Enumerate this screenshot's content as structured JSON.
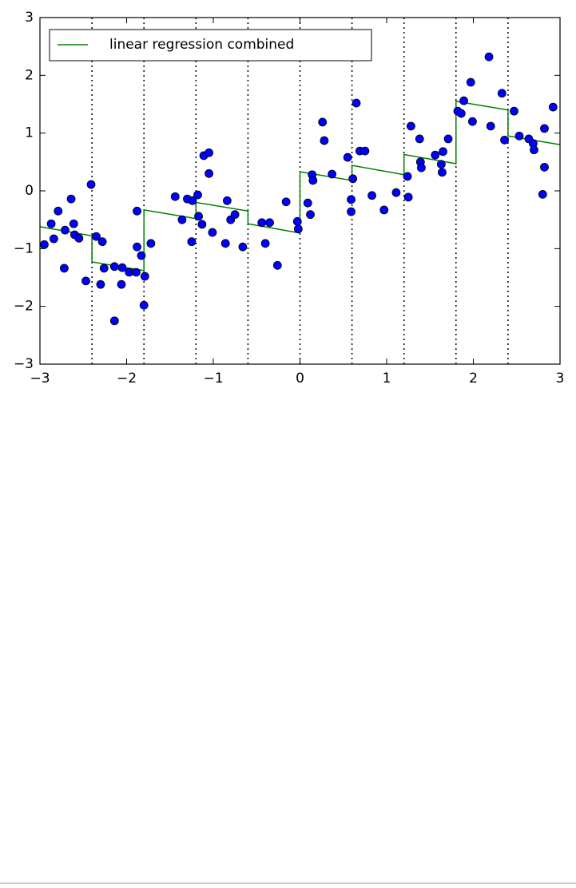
{
  "chart_data": {
    "type": "scatter",
    "xlim": [
      -3,
      3
    ],
    "ylim": [
      -3,
      3
    ],
    "xticks": [
      {
        "value": -3,
        "label": "−3"
      },
      {
        "value": -2,
        "label": "−2"
      },
      {
        "value": -1,
        "label": "−1"
      },
      0,
      1,
      2,
      3
    ],
    "yticks": [
      {
        "value": -3,
        "label": "−3"
      },
      {
        "value": -2,
        "label": "−2"
      },
      {
        "value": -1,
        "label": "−1"
      },
      0,
      1,
      2,
      3
    ],
    "grid": false,
    "legend": "upper left",
    "bin_edges": [
      -2.4,
      -1.8,
      -1.2,
      -0.6,
      0,
      0.6,
      1.2,
      1.8,
      2.4
    ],
    "scatter_points": {
      "color": "#0000ff",
      "x": [
        -2.95,
        -2.84,
        -2.87,
        -2.79,
        -2.71,
        -2.72,
        -2.64,
        -2.61,
        -2.6,
        -2.55,
        -2.47,
        -2.41,
        -2.35,
        -2.28,
        -2.3,
        -2.26,
        -2.14,
        -2.14,
        -2.05,
        -2.06,
        -1.97,
        -1.89,
        -1.88,
        -1.88,
        -1.83,
        -1.79,
        -1.8,
        -1.72,
        -1.44,
        -1.36,
        -1.3,
        -1.25,
        -1.24,
        -1.18,
        -1.17,
        -1.13,
        -1.11,
        -1.05,
        -1.05,
        -1.01,
        -0.86,
        -0.84,
        -0.8,
        -0.75,
        -0.66,
        -0.44,
        -0.4,
        -0.35,
        -0.26,
        -0.16,
        -0.03,
        -0.02,
        0.09,
        0.12,
        0.14,
        0.15,
        0.26,
        0.28,
        0.37,
        0.55,
        0.59,
        0.59,
        0.61,
        0.65,
        0.69,
        0.75,
        0.83,
        0.97,
        1.11,
        1.25,
        1.24,
        1.28,
        1.38,
        1.39,
        1.4,
        1.56,
        1.63,
        1.64,
        1.65,
        1.71,
        1.82,
        1.86,
        1.89,
        1.97,
        1.99,
        2.18,
        2.2,
        2.33,
        2.36,
        2.47,
        2.53,
        2.64,
        2.69,
        2.7,
        2.8,
        2.82,
        2.82,
        2.92
      ],
      "values": [
        -0.93,
        -0.83,
        -0.57,
        -0.35,
        -0.68,
        -1.34,
        -0.14,
        -0.57,
        -0.76,
        -0.82,
        -1.56,
        0.11,
        -0.79,
        -0.88,
        -1.62,
        -1.34,
        -1.31,
        -2.25,
        -1.33,
        -1.62,
        -1.41,
        -1.41,
        -0.35,
        -0.97,
        -1.12,
        -1.48,
        -1.98,
        -0.91,
        -0.1,
        -0.5,
        -0.14,
        -0.88,
        -0.17,
        -0.07,
        -0.44,
        -0.58,
        0.61,
        0.66,
        0.3,
        -0.72,
        -0.91,
        -0.17,
        -0.5,
        -0.41,
        -0.97,
        -0.55,
        -0.91,
        -0.55,
        -1.29,
        -0.19,
        -0.53,
        -0.66,
        -0.21,
        -0.41,
        0.28,
        0.18,
        1.19,
        0.87,
        0.29,
        0.58,
        -0.15,
        -0.36,
        0.21,
        1.52,
        0.69,
        0.69,
        -0.08,
        -0.33,
        -0.03,
        -0.11,
        0.25,
        1.12,
        0.9,
        0.5,
        0.4,
        0.62,
        0.46,
        0.32,
        0.68,
        0.9,
        1.38,
        1.34,
        1.56,
        1.88,
        1.2,
        2.32,
        1.12,
        1.69,
        0.88,
        1.38,
        0.95,
        0.9,
        0.82,
        0.71,
        -0.06,
        0.41,
        1.08,
        1.45
      ]
    },
    "series": [
      {
        "name": "linear regression combined",
        "color": "#008000",
        "x": [
          -3,
          -2.4,
          -2.4,
          -1.8,
          -1.8,
          -1.2,
          -1.2,
          -0.6,
          -0.6,
          0,
          0,
          0.6,
          0.6,
          1.2,
          1.2,
          1.8,
          1.8,
          2.4,
          2.4,
          3
        ],
        "values": [
          -0.62,
          -0.78,
          -1.23,
          -1.38,
          -0.33,
          -0.48,
          -0.2,
          -0.35,
          -0.57,
          -0.73,
          0.33,
          0.18,
          0.44,
          0.28,
          0.63,
          0.47,
          1.55,
          1.4,
          0.95,
          0.8
        ]
      }
    ]
  }
}
